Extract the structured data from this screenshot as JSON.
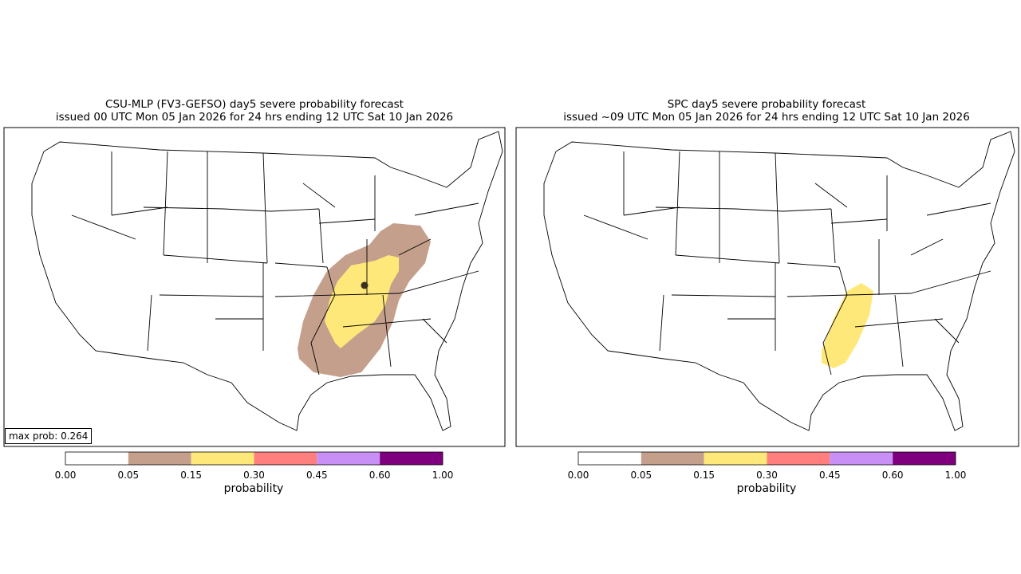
{
  "panels": [
    {
      "title_line1": "CSU-MLP (FV3-GEFSO) day5 severe probability forecast",
      "title_line2": "issued 00 UTC Mon 05 Jan 2026 for 24 hrs ending 12 UTC Sat 10 Jan 2026",
      "max_prob_label": "max prob: 0.264",
      "colorbar_label": "probability"
    },
    {
      "title_line1": "SPC day5 severe probability forecast",
      "title_line2": "issued ~09 UTC Mon 05 Jan 2026 for 24 hrs ending 12 UTC Sat 10 Jan 2026",
      "colorbar_label": "probability"
    }
  ],
  "colorbar": {
    "ticks": [
      "0.00",
      "0.05",
      "0.15",
      "0.30",
      "0.45",
      "0.60",
      "1.00"
    ],
    "colors": [
      "#ffffff",
      "#c4a08c",
      "#ffe87a",
      "#ff7f7f",
      "#c890f6",
      "#7f007f"
    ]
  }
}
